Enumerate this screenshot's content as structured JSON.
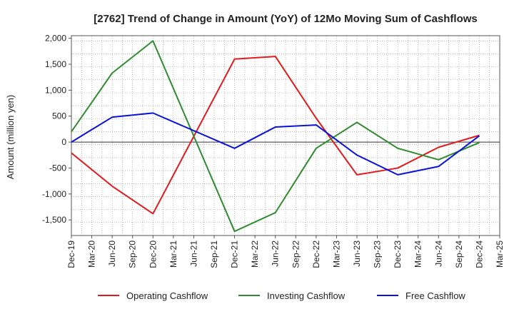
{
  "chart_data": {
    "type": "line",
    "title": "[2762]  Trend of Change in Amount (YoY) of 12Mo Moving Sum of Cashflows",
    "xlabel": "",
    "ylabel": "Amount (million yen)",
    "ylim": [
      -1800,
      2050
    ],
    "yticks": [
      -1500,
      -1000,
      -500,
      0,
      500,
      1000,
      1500,
      2000
    ],
    "ytick_labels": [
      "-1,500",
      "-1,000",
      "-500",
      "0",
      "500",
      "1,000",
      "1,500",
      "2,000"
    ],
    "x_categories": [
      "Dec-19",
      "Mar-20",
      "Jun-20",
      "Sep-20",
      "Dec-20",
      "Mar-21",
      "Jun-21",
      "Sep-21",
      "Dec-21",
      "Mar-22",
      "Jun-22",
      "Sep-22",
      "Dec-22",
      "Mar-23",
      "Jun-23",
      "Sep-23",
      "Dec-23",
      "Mar-24",
      "Jun-24",
      "Sep-24",
      "Dec-24",
      "Mar-25"
    ],
    "grid": true,
    "legend_position": "bottom",
    "series": [
      {
        "name": "Operating Cashflow",
        "color": "#e31a1c",
        "points": [
          {
            "x": "Dec-19",
            "y": -210
          },
          {
            "x": "Jun-20",
            "y": -850
          },
          {
            "x": "Dec-20",
            "y": -1380
          },
          {
            "x": "Dec-21",
            "y": 1600
          },
          {
            "x": "Jun-22",
            "y": 1650
          },
          {
            "x": "Dec-22",
            "y": 460
          },
          {
            "x": "Jun-23",
            "y": -630
          },
          {
            "x": "Dec-23",
            "y": -500
          },
          {
            "x": "Jun-24",
            "y": -100
          },
          {
            "x": "Dec-24",
            "y": 130
          }
        ]
      },
      {
        "name": "Investing Cashflow",
        "color": "#2e8b2e",
        "points": [
          {
            "x": "Dec-19",
            "y": 200
          },
          {
            "x": "Jun-20",
            "y": 1330
          },
          {
            "x": "Dec-20",
            "y": 1950
          },
          {
            "x": "Dec-21",
            "y": -1720
          },
          {
            "x": "Jun-22",
            "y": -1360
          },
          {
            "x": "Dec-22",
            "y": -120
          },
          {
            "x": "Jun-23",
            "y": 380
          },
          {
            "x": "Dec-23",
            "y": -120
          },
          {
            "x": "Jun-24",
            "y": -340
          },
          {
            "x": "Dec-24",
            "y": -10
          }
        ]
      },
      {
        "name": "Free Cashflow",
        "color": "#0a14d8",
        "points": [
          {
            "x": "Dec-19",
            "y": 0
          },
          {
            "x": "Jun-20",
            "y": 480
          },
          {
            "x": "Dec-20",
            "y": 560
          },
          {
            "x": "Dec-21",
            "y": -120
          },
          {
            "x": "Jun-22",
            "y": 290
          },
          {
            "x": "Dec-22",
            "y": 330
          },
          {
            "x": "Jun-23",
            "y": -250
          },
          {
            "x": "Dec-23",
            "y": -630
          },
          {
            "x": "Jun-24",
            "y": -470
          },
          {
            "x": "Dec-24",
            "y": 120
          }
        ]
      }
    ]
  }
}
